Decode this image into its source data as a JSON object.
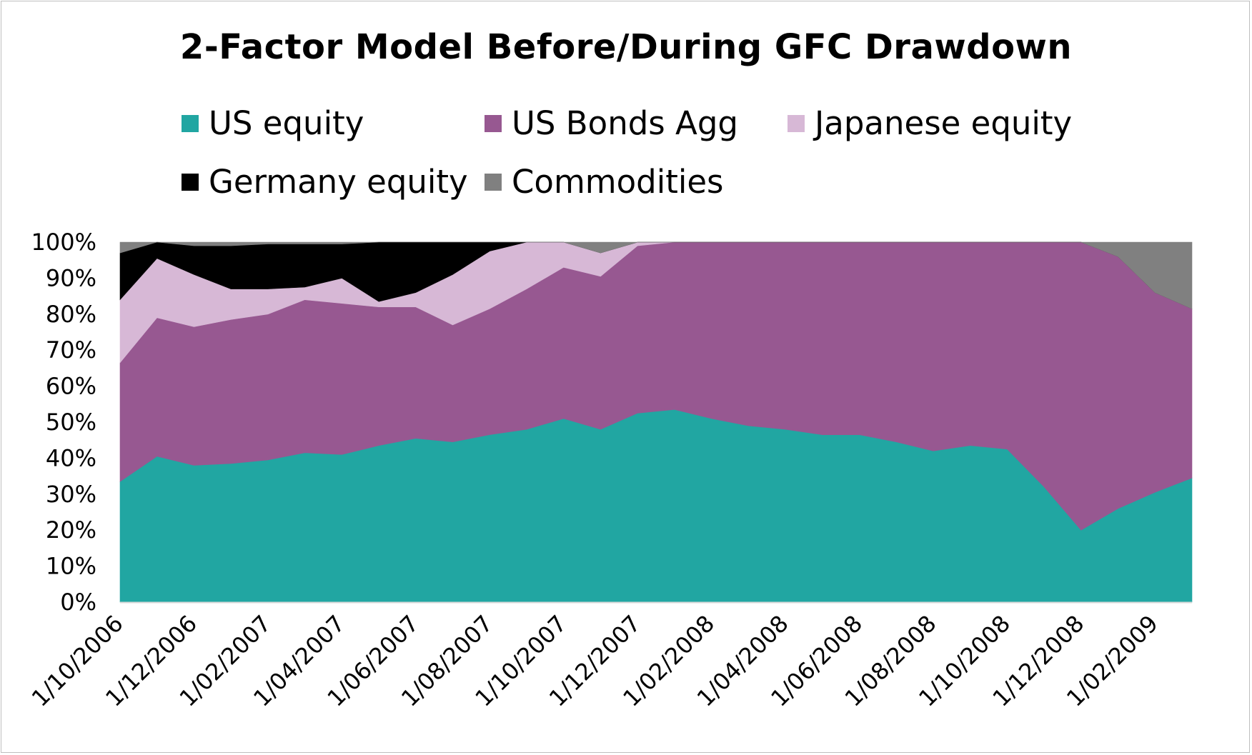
{
  "chart_data": {
    "type": "area",
    "stacked": true,
    "title": "2-Factor Model Before/During GFC Drawdown",
    "xlabel": "",
    "ylabel": "",
    "ylim": [
      0,
      100
    ],
    "yticks": [
      "0%",
      "10%",
      "20%",
      "30%",
      "40%",
      "50%",
      "60%",
      "70%",
      "80%",
      "90%",
      "100%"
    ],
    "x_tick_labels": [
      "1/10/2006",
      "1/12/2006",
      "1/02/2007",
      "1/04/2007",
      "1/06/2007",
      "1/08/2007",
      "1/10/2007",
      "1/12/2007",
      "1/02/2008",
      "1/04/2008",
      "1/06/2008",
      "1/08/2008",
      "1/10/2008",
      "1/12/2008",
      "1/02/2009"
    ],
    "legend_position": "top",
    "series": [
      {
        "name": "US equity",
        "color": "#21a6a2",
        "values": [
          33.5,
          40.5,
          38,
          38.5,
          39.5,
          41.5,
          41,
          43.5,
          45.5,
          44.5,
          46.5,
          48,
          51,
          48,
          52.5,
          53.5,
          51,
          49,
          48,
          46.5,
          46.5,
          44.5,
          42,
          43.5,
          42.5,
          32,
          20,
          26,
          30.5,
          34.5
        ]
      },
      {
        "name": "US Bonds Agg",
        "color": "#975891",
        "values": [
          33,
          38.5,
          38.5,
          40,
          40.5,
          42.5,
          42,
          38.5,
          36.5,
          32.5,
          35,
          39,
          42,
          42.5,
          46.5,
          46.5,
          49,
          51,
          52,
          53.5,
          53.5,
          55.5,
          58,
          56.5,
          57.5,
          68,
          80,
          70,
          55.5,
          47
        ]
      },
      {
        "name": "Japanese equity",
        "color": "#d7b8d6",
        "values": [
          17.5,
          16.5,
          14.5,
          8.5,
          7,
          3.5,
          7,
          1.5,
          4,
          14,
          16,
          13,
          7,
          6.5,
          1,
          0,
          0,
          0,
          0,
          0,
          0,
          0,
          0,
          0,
          0,
          0,
          0,
          0,
          0,
          0
        ]
      },
      {
        "name": "Germany equity",
        "color": "#000000",
        "values": [
          13,
          4.5,
          8,
          12,
          12.5,
          12,
          9.5,
          16.5,
          14,
          9,
          2.5,
          0,
          0,
          0,
          0,
          0,
          0,
          0,
          0,
          0,
          0,
          0,
          0,
          0,
          0,
          0,
          0,
          0,
          0,
          0
        ]
      },
      {
        "name": "Commodities",
        "color": "#808080",
        "values": [
          3,
          0,
          1,
          1,
          0.5,
          0.5,
          0.5,
          0,
          0,
          0,
          0,
          0,
          0,
          3,
          0,
          0,
          0,
          0,
          0,
          0,
          0,
          0,
          0,
          0,
          0,
          0,
          0,
          4,
          14,
          18.5
        ]
      }
    ]
  }
}
